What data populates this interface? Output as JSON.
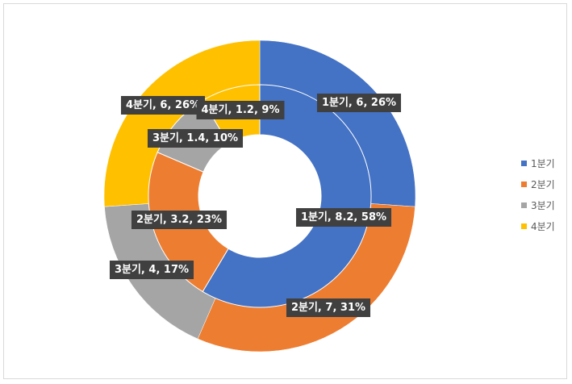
{
  "chart_data": {
    "type": "doughnut",
    "legend_position": "right",
    "series": [
      {
        "ring": "outer",
        "categories": [
          "1분기",
          "2분기",
          "3분기",
          "4분기"
        ],
        "values": [
          6,
          7,
          4,
          6
        ],
        "labels": [
          "1분기, 6, 26%",
          "2분기, 7, 31%",
          "3분기, 4, 17%",
          "4분기, 6, 26%"
        ]
      },
      {
        "ring": "inner",
        "categories": [
          "1분기",
          "2분기",
          "3분기",
          "4분기"
        ],
        "values": [
          8.2,
          3.2,
          1.4,
          1.2
        ],
        "labels": [
          "1분기, 8.2, 58%",
          "2분기, 3.2, 23%",
          "3분기, 1.4, 10%",
          "4분기, 1.2, 9%"
        ]
      }
    ],
    "legend": [
      {
        "label": "1분기",
        "color": "#4472C4"
      },
      {
        "label": "2분기",
        "color": "#ED7D31"
      },
      {
        "label": "3분기",
        "color": "#A5A5A5"
      },
      {
        "label": "4분기",
        "color": "#FFC000"
      }
    ]
  }
}
